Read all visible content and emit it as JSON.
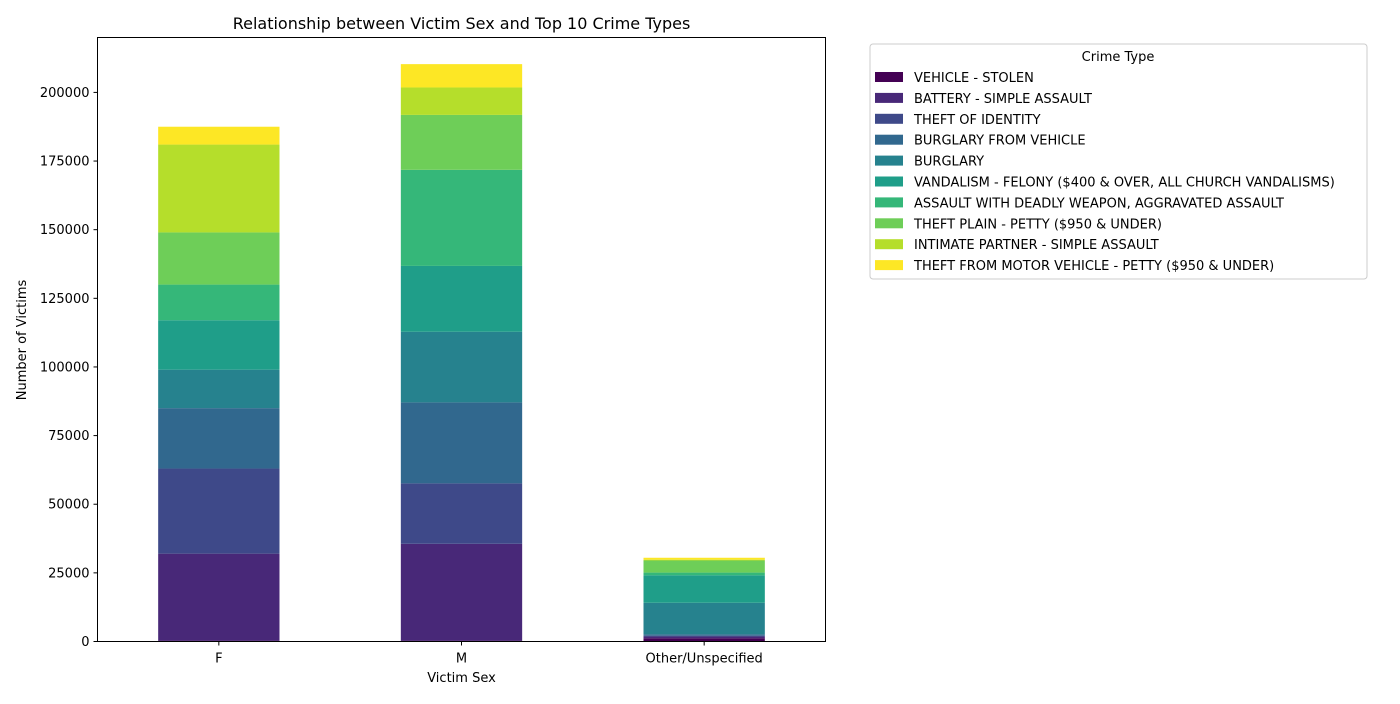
{
  "chart_data": {
    "type": "bar",
    "stacked": true,
    "title": "Relationship between Victim Sex and Top 10 Crime Types",
    "xlabel": "Victim Sex",
    "ylabel": "Number of Victims",
    "categories": [
      "F",
      "M",
      "Other/Unspecified"
    ],
    "ylim": [
      0,
      220000
    ],
    "yticks": [
      0,
      25000,
      50000,
      75000,
      100000,
      125000,
      150000,
      175000,
      200000
    ],
    "grid": false,
    "legend_title": "Crime Type",
    "legend_position": "outside-right-top",
    "series": [
      {
        "name": "VEHICLE - STOLEN",
        "color": "#440154",
        "values": [
          300,
          300,
          1200
        ]
      },
      {
        "name": "BATTERY - SIMPLE ASSAULT",
        "color": "#482878",
        "values": [
          31700,
          35300,
          600
        ]
      },
      {
        "name": "THEFT OF IDENTITY",
        "color": "#3e4989",
        "values": [
          31000,
          22000,
          300
        ]
      },
      {
        "name": "BURGLARY FROM VEHICLE",
        "color": "#31688e",
        "values": [
          22000,
          29500,
          500
        ]
      },
      {
        "name": "BURGLARY",
        "color": "#26828e",
        "values": [
          14000,
          25700,
          11500
        ]
      },
      {
        "name": "VANDALISM - FELONY ($400 & OVER, ALL CHURCH VANDALISMS)",
        "color": "#1f9e89",
        "values": [
          18000,
          24000,
          10000
        ]
      },
      {
        "name": "ASSAULT WITH DEADLY WEAPON, AGGRAVATED ASSAULT",
        "color": "#35b779",
        "values": [
          13000,
          35000,
          1000
        ]
      },
      {
        "name": "THEFT PLAIN - PETTY ($950 & UNDER)",
        "color": "#6ece58",
        "values": [
          19000,
          20000,
          4400
        ]
      },
      {
        "name": "INTIMATE PARTNER - SIMPLE ASSAULT",
        "color": "#b5de2b",
        "values": [
          32000,
          10000,
          300
        ]
      },
      {
        "name": "THEFT FROM MOTOR VEHICLE - PETTY ($950 & UNDER)",
        "color": "#fde725",
        "values": [
          6500,
          8500,
          700
        ]
      }
    ]
  }
}
